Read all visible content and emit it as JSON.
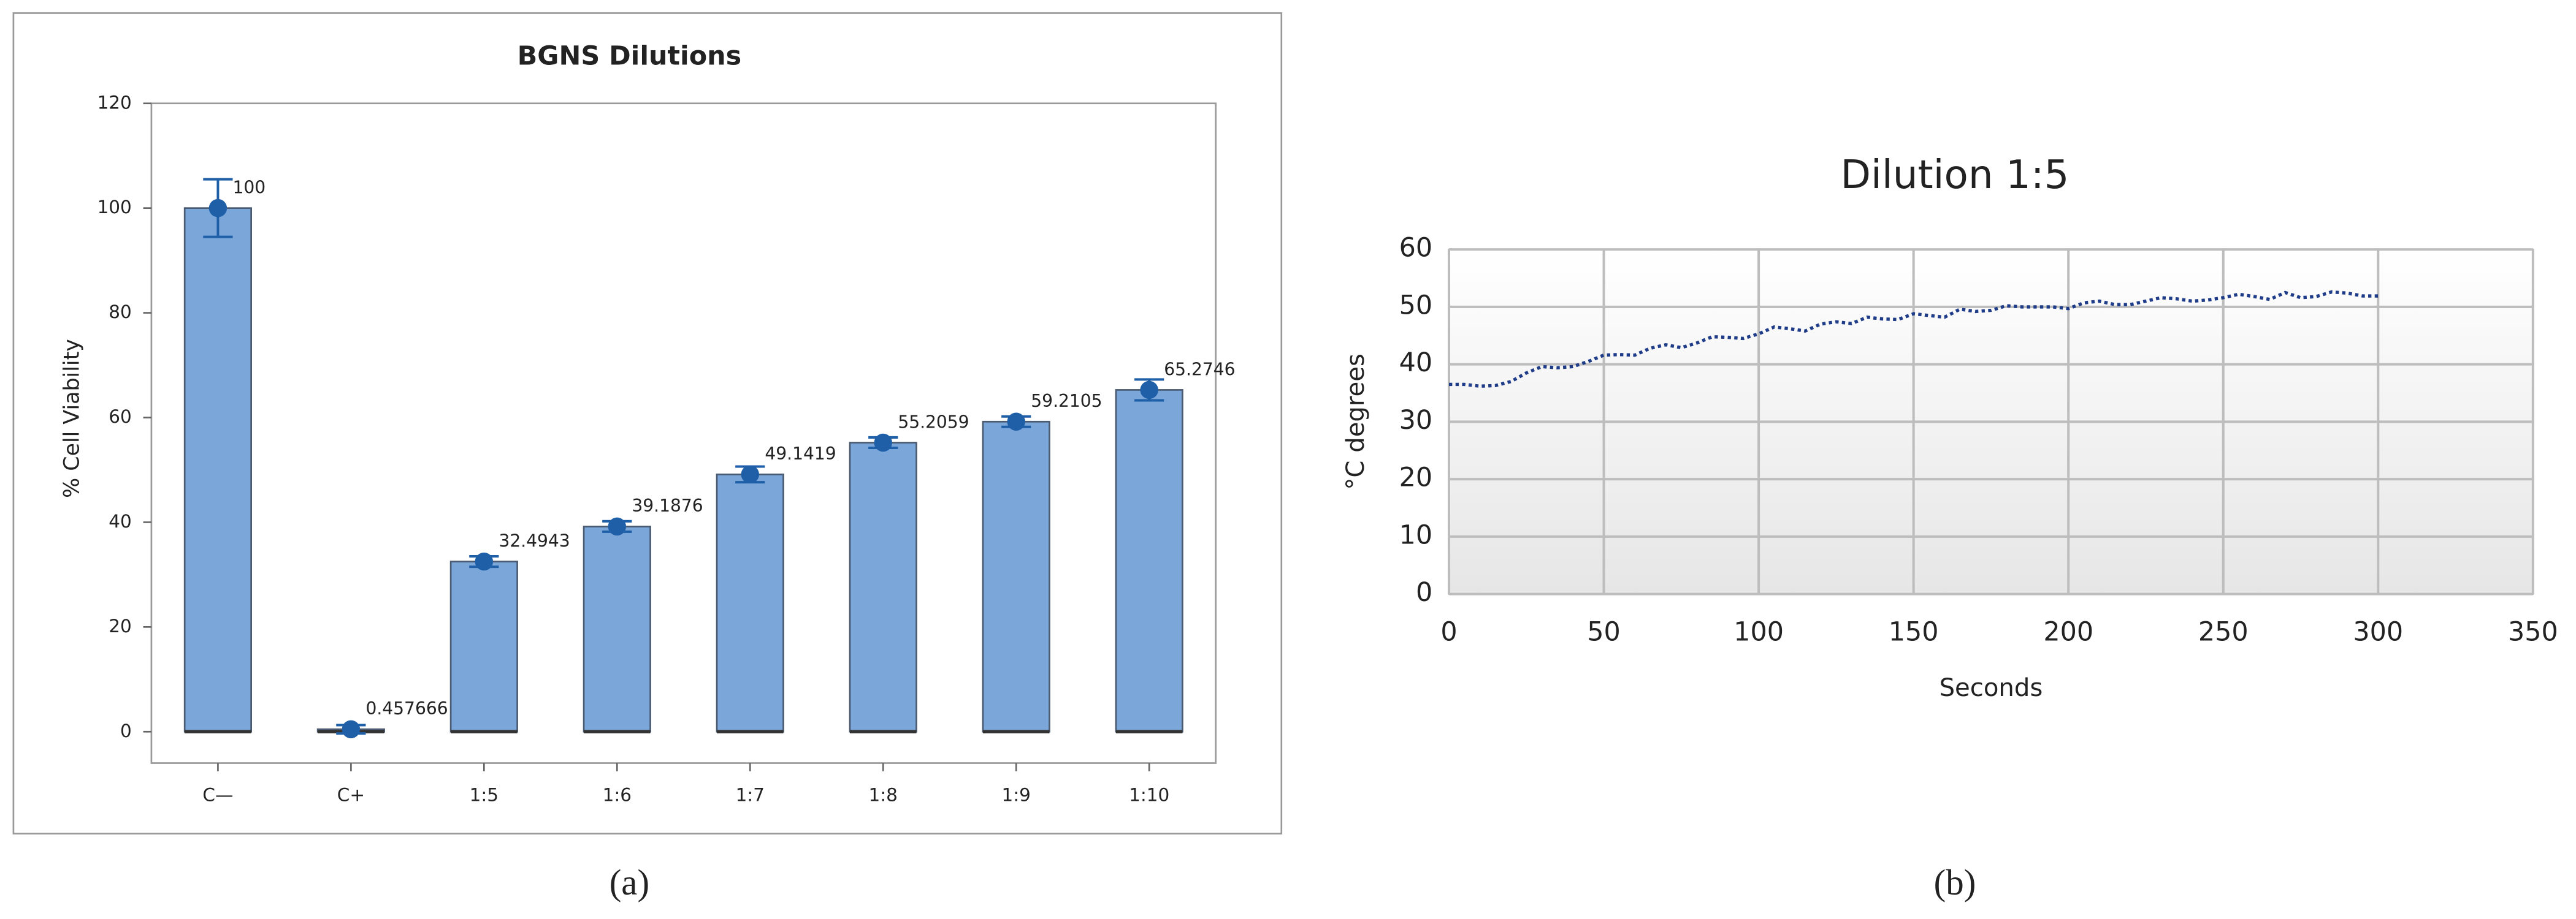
{
  "chart_data": [
    {
      "type": "bar",
      "title": "BGNS Dilutions",
      "ylabel": "% Cell Viability",
      "categories": [
        "C—",
        "C+",
        "1:5",
        "1:6",
        "1:7",
        "1:8",
        "1:9",
        "1:10"
      ],
      "values": [
        100,
        0.457666,
        32.4943,
        39.1876,
        49.1419,
        55.2059,
        59.2105,
        65.2746
      ],
      "errors": [
        5.5,
        0.8,
        1,
        1,
        1.5,
        1,
        1,
        2
      ],
      "color": "#7ba6d9",
      "marker_color": "#1f5fa8",
      "ylim": [
        -6,
        120
      ],
      "yticks": [
        0,
        20,
        40,
        60,
        80,
        100,
        120
      ]
    },
    {
      "type": "line",
      "title": "Dilution 1:5",
      "xlabel": "Seconds",
      "ylabel": "°C degrees",
      "x": [
        0,
        5,
        10,
        15,
        20,
        25,
        30,
        35,
        40,
        45,
        50,
        55,
        60,
        65,
        70,
        75,
        80,
        85,
        90,
        95,
        100,
        105,
        110,
        115,
        120,
        125,
        130,
        135,
        140,
        145,
        150,
        155,
        160,
        165,
        170,
        175,
        180,
        185,
        190,
        195,
        200,
        205,
        210,
        215,
        220,
        225,
        230,
        235,
        240,
        245,
        250,
        255,
        260,
        265,
        270,
        275,
        280,
        285,
        290,
        295,
        300
      ],
      "values": [
        36.5,
        36.5,
        36.2,
        36.3,
        37,
        38.5,
        39.6,
        39.4,
        39.6,
        40.5,
        41.6,
        41.7,
        41.6,
        42.8,
        43.4,
        42.9,
        43.7,
        44.8,
        44.7,
        44.5,
        45.3,
        46.5,
        46.2,
        45.8,
        47,
        47.4,
        47.1,
        48.2,
        47.9,
        47.8,
        48.8,
        48.5,
        48.2,
        49.6,
        49.2,
        49.4,
        50.2,
        50,
        50,
        50,
        49.7,
        50.7,
        51,
        50.4,
        50.4,
        51,
        51.6,
        51.4,
        51,
        51.2,
        51.6,
        52.2,
        51.8,
        51.3,
        52.5,
        51.6,
        51.8,
        52.6,
        52.4,
        51.9,
        51.9
      ],
      "color": "#1f3c88",
      "xlim": [
        0,
        350
      ],
      "xticks": [
        0,
        50,
        100,
        150,
        200,
        250,
        300,
        350
      ],
      "ylim": [
        0,
        60
      ],
      "yticks": [
        0,
        10,
        20,
        30,
        40,
        50,
        60
      ],
      "grid": true
    }
  ],
  "captions": [
    "(a)",
    "(b)"
  ]
}
